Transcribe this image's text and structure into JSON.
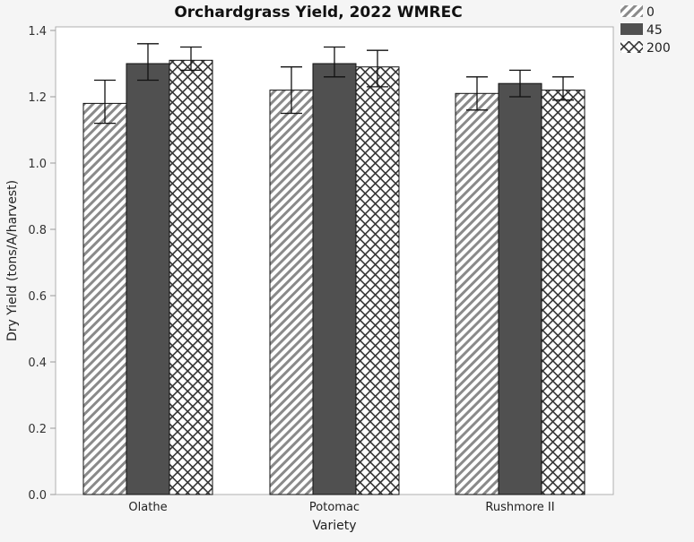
{
  "chart_data": {
    "type": "bar",
    "title": "Orchardgrass Yield, 2022 WMREC",
    "xlabel": "Variety",
    "ylabel": "Dry Yield (tons/A/harvest)",
    "ylim": [
      0,
      1.4
    ],
    "yticks": [
      "0.0",
      "0.2",
      "0.4",
      "0.6",
      "0.8",
      "1.0",
      "1.2",
      "1.4"
    ],
    "grid": false,
    "legend_position": "top-right",
    "categories": [
      "Olathe",
      "Potomac",
      "Rushmore II"
    ],
    "series": [
      {
        "name": "0",
        "pattern": "diagonal-hatch",
        "values": [
          1.18,
          1.22,
          1.21
        ],
        "error_low": [
          1.12,
          1.15,
          1.16
        ],
        "error_high": [
          1.25,
          1.29,
          1.26
        ]
      },
      {
        "name": "45",
        "pattern": "solid",
        "color": "#505050",
        "values": [
          1.3,
          1.3,
          1.24
        ],
        "error_low": [
          1.25,
          1.26,
          1.2
        ],
        "error_high": [
          1.36,
          1.35,
          1.28
        ]
      },
      {
        "name": "200",
        "pattern": "crosshatch",
        "values": [
          1.31,
          1.29,
          1.22
        ],
        "error_low": [
          1.28,
          1.23,
          1.19
        ],
        "error_high": [
          1.35,
          1.34,
          1.26
        ]
      }
    ]
  },
  "colors": {
    "solid_bar": "#505050",
    "hatch": "#888888",
    "background": "#f5f5f5",
    "plot_bg": "#ffffff"
  }
}
